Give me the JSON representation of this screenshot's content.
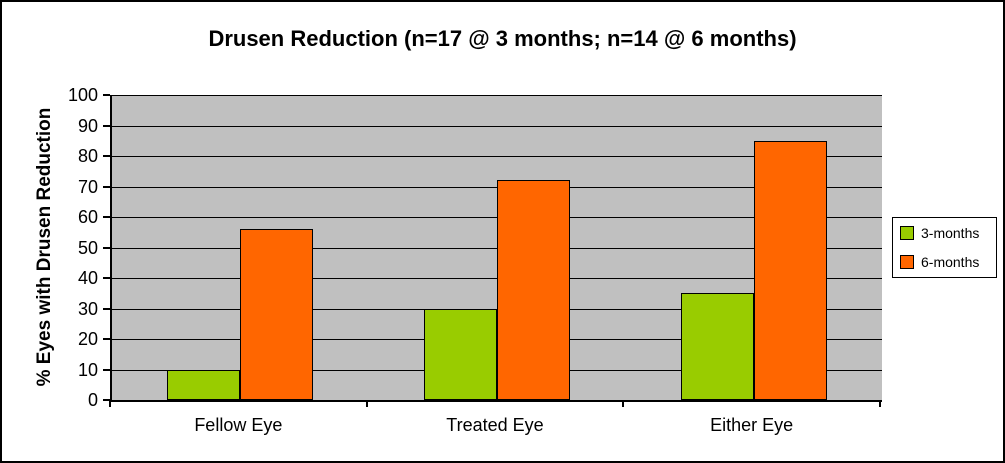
{
  "chart_data": {
    "type": "bar",
    "title": "Drusen Reduction (n=17 @ 3 months; n=14 @ 6 months)",
    "ylabel": "% Eyes with Drusen Reduction",
    "xlabel": "",
    "categories": [
      "Fellow Eye",
      "Treated Eye",
      "Either Eye"
    ],
    "series": [
      {
        "name": "3-months",
        "color": "#99CC00",
        "values": [
          10,
          30,
          35
        ]
      },
      {
        "name": "6-months",
        "color": "#FF6600",
        "values": [
          56,
          72,
          85
        ]
      }
    ],
    "ylim": [
      0,
      100
    ],
    "yticks": [
      0,
      10,
      20,
      30,
      40,
      50,
      60,
      70,
      80,
      90,
      100
    ],
    "grid": true,
    "legend_position": "right",
    "colors": {
      "plot_background": "#C0C0C0",
      "gridline": "#000000",
      "axis": "#000000",
      "page_background": "#FFFFFF"
    }
  }
}
